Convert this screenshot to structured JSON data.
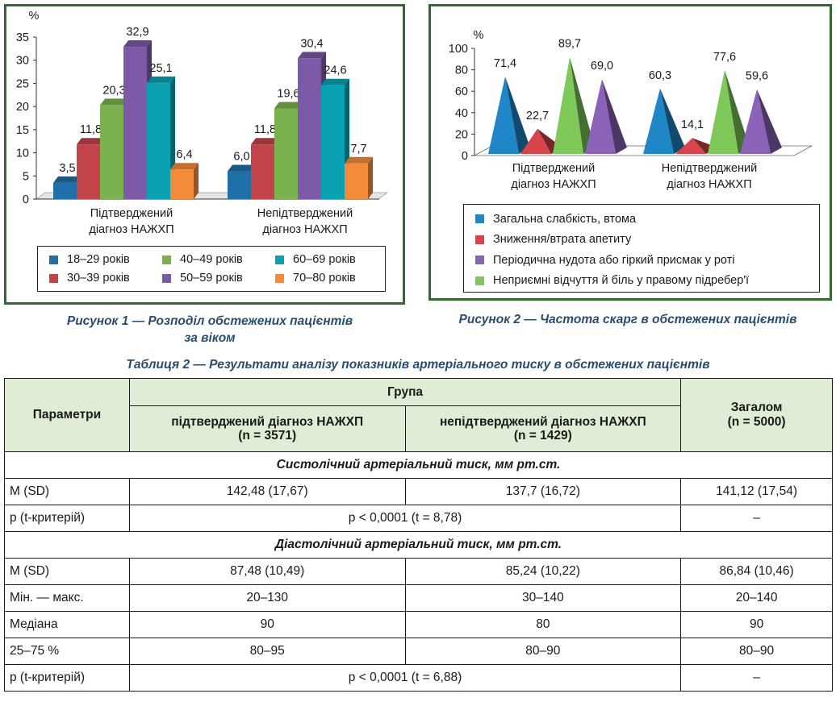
{
  "figure1": {
    "caption_line1": "Рисунок 1 — Розподіл обстежених пацієнтів",
    "caption_line2": "за віком"
  },
  "figure2": {
    "caption": "Рисунок 2 — Частота скарг в обстежених пацієнтів"
  },
  "colors": {
    "frame": "#2f6b2f",
    "header_bg": "#dfecd6",
    "caption_text": "#2a4d6f"
  },
  "chart_data": [
    {
      "type": "bar",
      "style": "3d-column",
      "ylabel": "%",
      "ylim": [
        0,
        35
      ],
      "yticks": [
        0,
        5,
        10,
        15,
        20,
        25,
        30,
        35
      ],
      "categories": [
        "Підтверджений діагноз НАЖХП",
        "Непідтверджений діагноз НАЖХП"
      ],
      "category_lines": [
        [
          "Підтверджений",
          "діагноз НАЖХП"
        ],
        [
          "Непідтверджений",
          "діагноз НАЖХП"
        ]
      ],
      "series": [
        {
          "name": "18–29 років",
          "values": [
            3.5,
            6.0
          ],
          "labels": [
            "3,5",
            "6,0"
          ],
          "color": "#1f6fa8"
        },
        {
          "name": "30–39 років",
          "values": [
            11.8,
            11.8
          ],
          "labels": [
            "11,8",
            "11,8"
          ],
          "color": "#c2444b"
        },
        {
          "name": "40–49 років",
          "values": [
            20.3,
            19.6
          ],
          "labels": [
            "20,3",
            "19,6"
          ],
          "color": "#79b24f"
        },
        {
          "name": "50–59 років",
          "values": [
            32.9,
            30.4
          ],
          "labels": [
            "32,9",
            "30,4"
          ],
          "color": "#7d5aa8"
        },
        {
          "name": "60–69 років",
          "values": [
            25.1,
            24.6
          ],
          "labels": [
            "25,1",
            "24,6"
          ],
          "color": "#0aa2b2"
        },
        {
          "name": "70–80 років",
          "values": [
            6.4,
            7.7
          ],
          "labels": [
            "6,4",
            "7,7"
          ],
          "color": "#f48b3a"
        }
      ],
      "legend_position": "bottom",
      "grid": false
    },
    {
      "type": "bar",
      "style": "3d-pyramid",
      "ylabel": "%",
      "ylim": [
        0,
        100
      ],
      "yticks": [
        0,
        20,
        40,
        60,
        80,
        100
      ],
      "categories": [
        "Підтверджений діагноз НАЖХП",
        "Непідтверджений діагноз НАЖХП"
      ],
      "category_lines": [
        [
          "Підтверджений",
          "діагноз НАЖХП"
        ],
        [
          "Непідтверджений",
          "діагноз НАЖХП"
        ]
      ],
      "series": [
        {
          "name": "Загальна слабкість, втома",
          "values": [
            71.4,
            60.3
          ],
          "labels": [
            "71,4",
            "60,3"
          ],
          "color": "#1f86c8"
        },
        {
          "name": "Зниження/втрата апетиту",
          "values": [
            22.7,
            14.1
          ],
          "labels": [
            "22,7",
            "14,1"
          ],
          "color": "#d9434b"
        },
        {
          "name": "Неприємні відчуття й біль у правому підребер'ї",
          "values": [
            89.7,
            77.6
          ],
          "labels": [
            "89,7",
            "77,6"
          ],
          "color": "#7ec95a"
        },
        {
          "name": "Періодична нудота або гіркий присмак у роті",
          "values": [
            69.0,
            59.6
          ],
          "labels": [
            "69,0",
            "59,6"
          ],
          "color": "#8a63b8"
        }
      ],
      "legend_order": [
        0,
        1,
        3,
        2
      ],
      "legend_position": "bottom",
      "grid": false
    }
  ],
  "table": {
    "caption": "Таблиця 2 — Результати аналізу показників артеріального тиску в обстежених пацієнтів",
    "h_params": "Параметри",
    "h_group": "Група",
    "h_conf_l1": "підтверджений діагноз НАЖХП",
    "h_conf_l2": "(n = 3571)",
    "h_unconf_l1": "непідтверджений діагноз НАЖХП",
    "h_unconf_l2": "(n = 1429)",
    "h_total_l1": "Загалом",
    "h_total_l2": "(n = 5000)",
    "section1": "Систолічний артеріальний тиск, мм рт.ст.",
    "s1_rows": [
      [
        "M (SD)",
        "142,48 (17,67)",
        "137,7 (16,72)",
        "141,12 (17,54)"
      ]
    ],
    "s1_p": [
      "p (t-критерій)",
      "p < 0,0001 (t = 8,78)",
      "–"
    ],
    "section2": "Діастолічний артеріальний тиск, мм рт.ст.",
    "s2_rows": [
      [
        "M (SD)",
        "87,48 (10,49)",
        "85,24 (10,22)",
        "86,84 (10,46)"
      ],
      [
        "Мін. — макс.",
        "20–130",
        "30–140",
        "20–140"
      ],
      [
        "Медіана",
        "90",
        "80",
        "90"
      ],
      [
        "25–75 %",
        "80–95",
        "80–90",
        "80–90"
      ]
    ],
    "s2_p": [
      "p (t-критерій)",
      "p < 0,0001 (t = 6,88)",
      "–"
    ]
  }
}
